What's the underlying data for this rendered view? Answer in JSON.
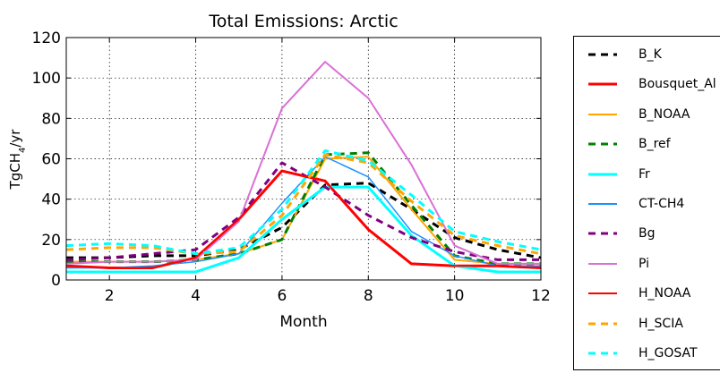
{
  "chart_data": {
    "type": "line",
    "title": "Total Emissions: Arctic",
    "xlabel": "Month",
    "ylabel": "TgCH4/yr",
    "xlim": [
      1,
      12
    ],
    "ylim": [
      0,
      120
    ],
    "x_ticks": [
      2,
      4,
      6,
      8,
      10,
      12
    ],
    "y_ticks": [
      0,
      20,
      40,
      60,
      80,
      100,
      120
    ],
    "grid": true,
    "legend_position": "right",
    "x": [
      1,
      2,
      3,
      4,
      5,
      6,
      7,
      8,
      9,
      10,
      11,
      12
    ],
    "series": [
      {
        "name": "B_K",
        "color": "#000000",
        "dash": "dashed",
        "width": 3,
        "values": [
          11,
          11,
          12,
          12,
          15,
          26,
          47,
          48,
          35,
          21,
          15,
          11
        ]
      },
      {
        "name": "Bousquet_Al",
        "color": "#ff0000",
        "dash": "solid",
        "width": 3,
        "values": [
          7,
          6,
          6,
          11,
          30,
          54,
          49,
          25,
          8,
          7,
          7,
          6
        ]
      },
      {
        "name": "B_NOAA",
        "color": "#ffa500",
        "dash": "solid",
        "width": 2,
        "values": [
          9,
          9,
          9,
          10,
          13,
          20,
          60,
          61,
          35,
          10,
          8,
          8
        ]
      },
      {
        "name": "B_ref",
        "color": "#008000",
        "dash": "dashed",
        "width": 3,
        "values": [
          9,
          9,
          9,
          10,
          13,
          20,
          62,
          63,
          37,
          12,
          8,
          8
        ]
      },
      {
        "name": "Fr",
        "color": "#00ffff",
        "dash": "solid",
        "width": 3,
        "values": [
          4,
          4,
          4,
          4,
          11,
          30,
          46,
          46,
          22,
          7,
          4,
          4
        ]
      },
      {
        "name": "CT-CH4",
        "color": "#1e90ff",
        "dash": "solid",
        "width": 1.5,
        "values": [
          6,
          6,
          7,
          9,
          13,
          38,
          61,
          51,
          24,
          12,
          7,
          7
        ]
      },
      {
        "name": "Bg",
        "color": "#800080",
        "dash": "dashed",
        "width": 3,
        "values": [
          10,
          11,
          13,
          15,
          31,
          58,
          46,
          32,
          21,
          14,
          10,
          10
        ]
      },
      {
        "name": "Pi",
        "color": "#da70d6",
        "dash": "solid",
        "width": 2,
        "values": [
          8,
          9,
          9,
          10,
          29,
          85,
          108,
          90,
          57,
          17,
          8,
          8
        ]
      },
      {
        "name": "H_NOAA",
        "color": "#ff0000",
        "dash": "solid",
        "width": 2,
        "values": [
          7,
          6,
          6,
          11,
          30,
          54,
          49,
          25,
          8,
          7,
          7,
          6
        ]
      },
      {
        "name": "H_SCIA",
        "color": "#ffa500",
        "dash": "dashed",
        "width": 3,
        "values": [
          15,
          16,
          16,
          13,
          14,
          32,
          62,
          58,
          39,
          22,
          17,
          13
        ]
      },
      {
        "name": "H_GOSAT",
        "color": "#00ffff",
        "dash": "dashed",
        "width": 3,
        "values": [
          17,
          18,
          17,
          13,
          16,
          35,
          64,
          59,
          42,
          24,
          19,
          15
        ]
      }
    ]
  }
}
